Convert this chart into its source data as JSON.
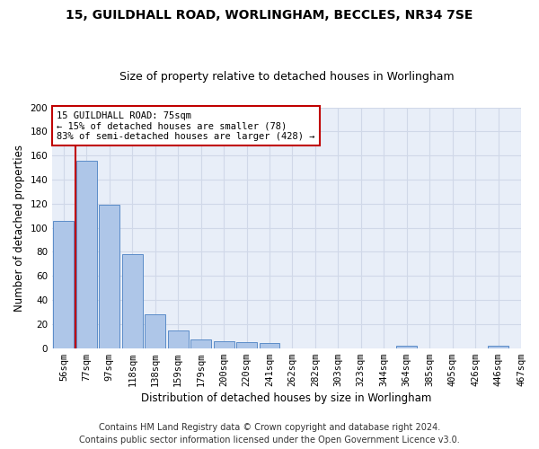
{
  "title_line1": "15, GUILDHALL ROAD, WORLINGHAM, BECCLES, NR34 7SE",
  "title_line2": "Size of property relative to detached houses in Worlingham",
  "xlabel": "Distribution of detached houses by size in Worlingham",
  "ylabel": "Number of detached properties",
  "bar_values": [
    106,
    156,
    119,
    78,
    28,
    15,
    7,
    6,
    5,
    4,
    0,
    0,
    0,
    0,
    0,
    2,
    0,
    0,
    0,
    2
  ],
  "bar_labels": [
    "56sqm",
    "77sqm",
    "97sqm",
    "118sqm",
    "138sqm",
    "159sqm",
    "179sqm",
    "200sqm",
    "220sqm",
    "241sqm",
    "262sqm",
    "282sqm",
    "303sqm",
    "323sqm",
    "344sqm",
    "364sqm",
    "385sqm",
    "405sqm",
    "426sqm",
    "446sqm",
    "467sqm"
  ],
  "bar_color": "#aec6e8",
  "bar_edge_color": "#5b8cc8",
  "vline_x": 0.5,
  "vline_color": "#c00000",
  "ylim": [
    0,
    200
  ],
  "yticks": [
    0,
    20,
    40,
    60,
    80,
    100,
    120,
    140,
    160,
    180,
    200
  ],
  "annotation_text": "15 GUILDHALL ROAD: 75sqm\n← 15% of detached houses are smaller (78)\n83% of semi-detached houses are larger (428) →",
  "annotation_box_color": "#ffffff",
  "annotation_box_edge": "#c00000",
  "footer_line1": "Contains HM Land Registry data © Crown copyright and database right 2024.",
  "footer_line2": "Contains public sector information licensed under the Open Government Licence v3.0.",
  "bg_color": "#e8eef8",
  "grid_color": "#d0d8e8",
  "title_fontsize": 10,
  "subtitle_fontsize": 9,
  "axis_label_fontsize": 8.5,
  "tick_fontsize": 7.5,
  "footer_fontsize": 7
}
